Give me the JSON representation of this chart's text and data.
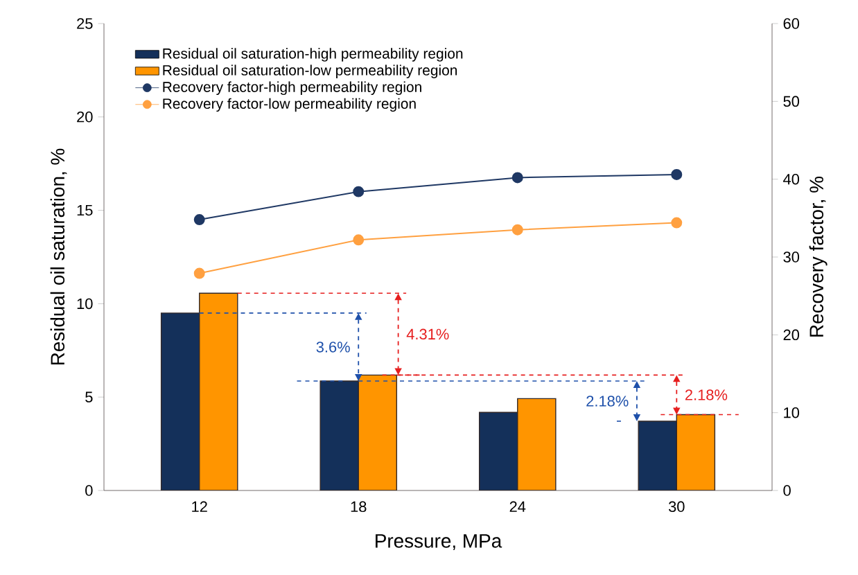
{
  "chart_data": {
    "type": "bar",
    "xlabel": "Pressure, MPa",
    "ylabel": "Residual oil saturation, %",
    "y2label": "Recovery factor, %",
    "categories": [
      "12",
      "18",
      "24",
      "30"
    ],
    "series": [
      {
        "name": "Residual oil saturation-high permeability region",
        "color": "#14305a",
        "values": [
          9.5,
          5.86,
          4.18,
          3.71
        ]
      },
      {
        "name": "Residual oil saturation-low permeability region",
        "color": "#ff9500",
        "values": [
          10.56,
          6.18,
          4.92,
          4.06
        ]
      },
      {
        "name": "Recovery factor-high permeability region",
        "type": "line",
        "axis": "y2",
        "color": "#1f3864",
        "values": [
          34.8,
          38.4,
          40.2,
          40.6
        ]
      },
      {
        "name": "Recovery factor-low permeability region",
        "type": "line",
        "axis": "y2",
        "color": "#ffa040",
        "values": [
          27.9,
          32.2,
          33.5,
          34.4
        ]
      }
    ],
    "ylim": [
      0,
      25
    ],
    "yticks": [
      0,
      5,
      10,
      15,
      20,
      25
    ],
    "y2lim": [
      0,
      60
    ],
    "y2ticks": [
      0,
      10,
      20,
      30,
      40,
      50,
      60
    ],
    "marker": "circle",
    "legend": "top left",
    "annotations": [
      "3.6%",
      "4.31%",
      "2.18%",
      "2.18%"
    ]
  }
}
